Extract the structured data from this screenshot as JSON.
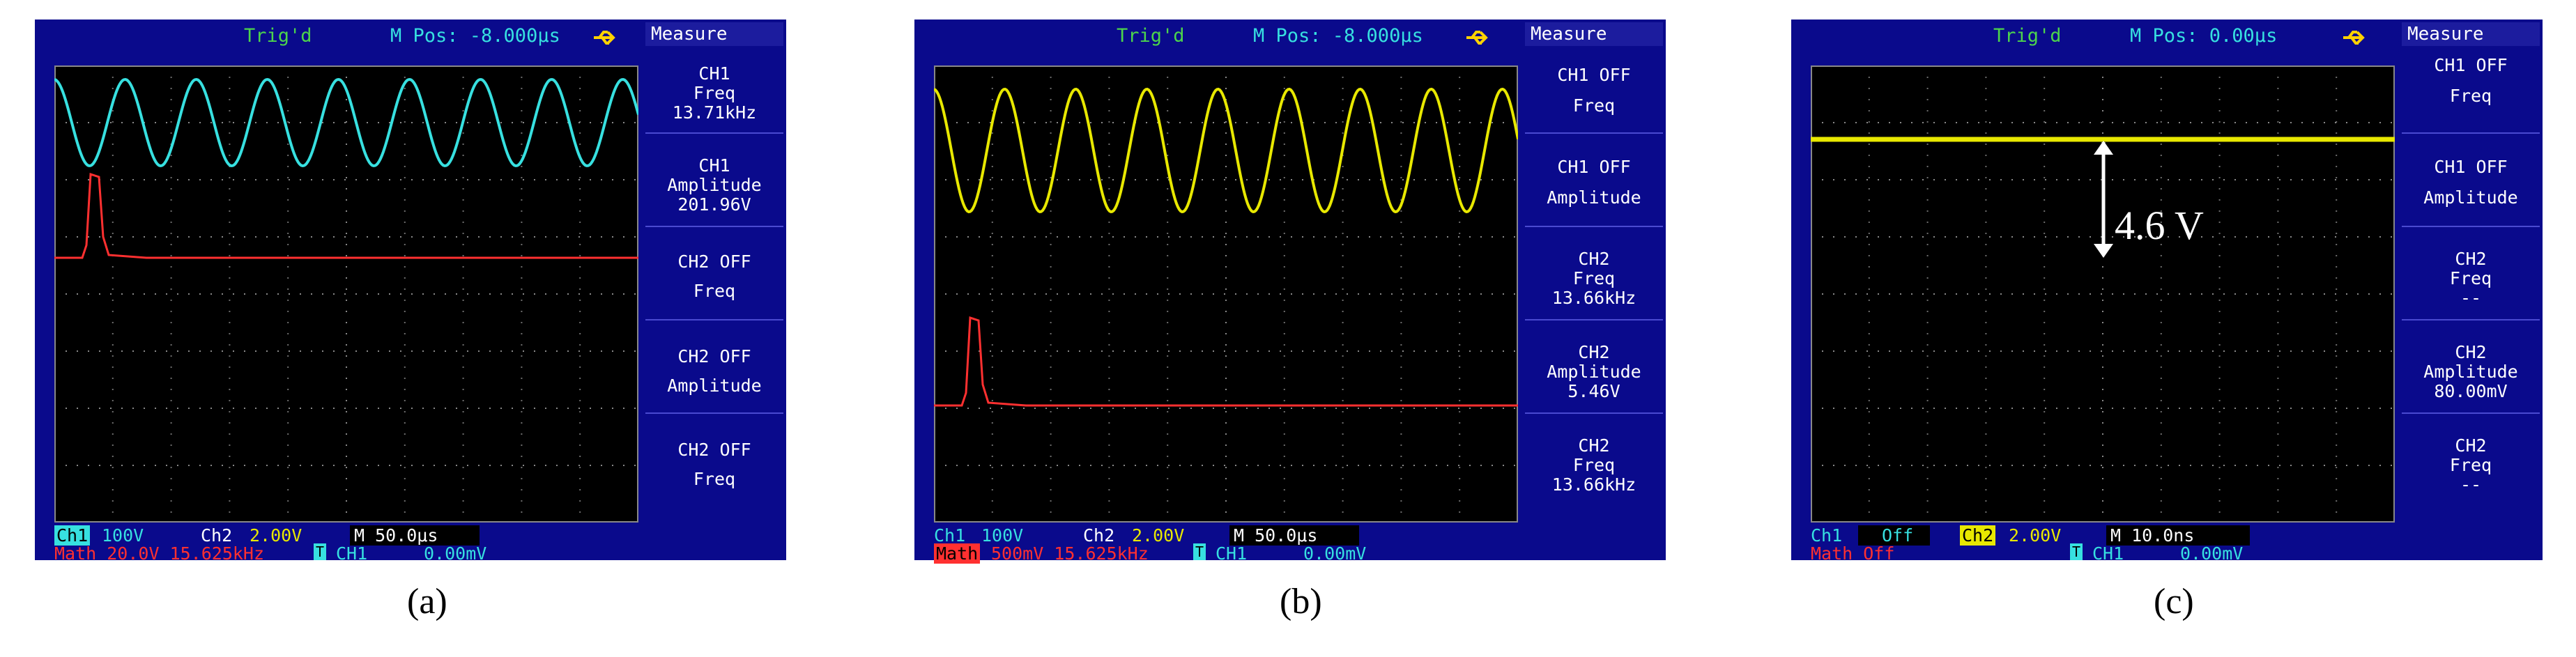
{
  "panels": [
    {
      "trig": "Trig'd",
      "mpos": "M Pos: -8.000μs",
      "measure_title": "Measure",
      "measure": [
        {
          "label1": "CH1",
          "label2": "Freq",
          "value": "13.71kHz"
        },
        {
          "label1": "CH1",
          "label2": "Amplitude",
          "value": "201.96V"
        },
        {
          "label1": "CH2  OFF",
          "label2": "Freq",
          "value": ""
        },
        {
          "label1": "CH2  OFF",
          "label2": "Amplitude",
          "value": ""
        },
        {
          "label1": "CH2  OFF",
          "label2": "Freq",
          "value": ""
        }
      ],
      "ch1": "Ch1",
      "ch1_val": "100V",
      "ch2": "Ch2",
      "ch2_val": "2.00V",
      "time": "M 50.0μs",
      "math": "Math  20.0V 15.625kHz",
      "trig_ch": "CH1",
      "trig_level": "0.00mV",
      "caption": "(a)"
    },
    {
      "trig": "Trig'd",
      "mpos": "M Pos: -8.000μs",
      "measure_title": "Measure",
      "measure": [
        {
          "label1": "CH1  OFF",
          "label2": "Freq",
          "value": ""
        },
        {
          "label1": "CH1  OFF",
          "label2": "Amplitude",
          "value": ""
        },
        {
          "label1": "CH2",
          "label2": "Freq",
          "value": "13.66kHz"
        },
        {
          "label1": "CH2",
          "label2": "Amplitude",
          "value": "5.46V"
        },
        {
          "label1": "CH2",
          "label2": "Freq",
          "value": "13.66kHz"
        }
      ],
      "ch1": "Ch1",
      "ch1_val": "100V",
      "ch2": "Ch2",
      "ch2_val": "2.00V",
      "time": "M 50.0μs",
      "math": "Math",
      "math_val": "500mV 15.625kHz",
      "trig_ch": "CH1",
      "trig_level": "0.00mV",
      "caption": "(b)"
    },
    {
      "trig": "Trig'd",
      "mpos": "M Pos: 0.00μs",
      "measure_title": "Measure",
      "measure": [
        {
          "label1": "CH1  OFF",
          "label2": "Freq",
          "value": ""
        },
        {
          "label1": "CH1  OFF",
          "label2": "Amplitude",
          "value": ""
        },
        {
          "label1": "CH2",
          "label2": "Freq",
          "value": "--"
        },
        {
          "label1": "CH2",
          "label2": "Amplitude",
          "value": "80.00mV"
        },
        {
          "label1": "CH2",
          "label2": "Freq",
          "value": "--"
        }
      ],
      "ch1": "Ch1",
      "ch1_val": "Off",
      "ch2": "Ch2",
      "ch2_val": "2.00V",
      "time": "M 10.0ns",
      "math": "Math  Off",
      "trig_ch": "CH1",
      "trig_level": "0.00mV",
      "annotation": "4.6 V",
      "caption": "(c)"
    }
  ],
  "colors": {
    "screen_bg": "#000000",
    "frame_bg": "#0a0a8c",
    "ch1": "#37e0e0",
    "ch2": "#e8e800",
    "math": "#ff3030"
  }
}
